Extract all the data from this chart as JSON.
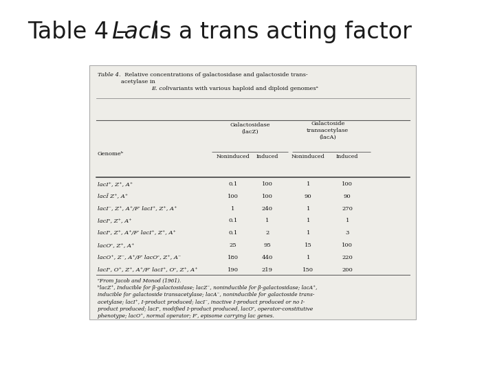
{
  "title_plain": "Table 4 – ",
  "title_italic": "LacI",
  "title_rest": " is a trans acting factor",
  "bg_color": "#ffffff",
  "box_bg": "#eeede8",
  "box_border": "#aaaaaa",
  "table_caption_italic": "Table 4.",
  "table_caption_rest": "  Relative concentrations of galactosidase and galactoside trans-\nacetylase in ",
  "table_caption_ecoli": "E. coli",
  "table_caption_end": " variants with various haploid and diploid genomesᵃ",
  "col_header_lacZ": "Galactosidase\n(lacZ)",
  "col_header_lacA": "Galactoside\ntransacetylase\n(lacA)",
  "sub_headers": [
    "Noninduced",
    "Induced",
    "Noninduced",
    "Induced"
  ],
  "row_header": "Genomeᵇ",
  "rows": [
    {
      "genome": "lacI⁺, Z⁺, A⁺",
      "vals": [
        "0.1",
        "100",
        "1",
        "100"
      ]
    },
    {
      "genome": "lacĪ Z⁺, A⁺",
      "vals": [
        "100",
        "100",
        "90",
        "90"
      ]
    },
    {
      "genome": "lacI⁻, Z⁺, A⁺/F′ lacI⁺, Z⁺, A⁺",
      "vals": [
        "1",
        "240",
        "1",
        "270"
      ]
    },
    {
      "genome": "lacIˢ, Z⁺, A⁺",
      "vals": [
        "0.1",
        "1",
        "1",
        "1"
      ]
    },
    {
      "genome": "lacIˢ, Z⁺, A⁺/F′ lacI⁺, Z⁺, A⁺",
      "vals": [
        "0.1",
        "2",
        "1",
        "3"
      ]
    },
    {
      "genome": "lacOᶜ, Z⁺, A⁺",
      "vals": [
        "25",
        "95",
        "15",
        "100"
      ]
    },
    {
      "genome": "lacO⁺, Z⁻, A⁺/F′ lacOᶜ, Z⁺, A⁻",
      "vals": [
        "180",
        "440",
        "1",
        "220"
      ]
    },
    {
      "genome": "lacIˢ, O⁺, Z⁺, A⁺/F′ lacI⁺, Oᶜ, Z⁺, A⁺",
      "vals": [
        "190",
        "219",
        "150",
        "200"
      ]
    }
  ],
  "footnotes": [
    "ᵃFrom Jacob and Monod (1961).",
    "ᵇlacZ⁺, Inducible for β-galactosidase; lacZ⁻, noninducible for β-galactosidase; lacA⁺,",
    "inducible for galactoside transacetylase; lacA⁻, noninducible for galactoside trans-",
    "acetylase; lacI⁺, I-product produced; lacI⁻, inactive I-product produced or no I-",
    "product produced; lacIˢ, modified I-product produced, lacOᶜ, operator-constitutive",
    "phenotype; lacO⁺, normal operator; F′, episome carrying lac genes."
  ],
  "title_fontsize": 24,
  "table_fontsize": 6.0,
  "footnote_fontsize": 5.4
}
